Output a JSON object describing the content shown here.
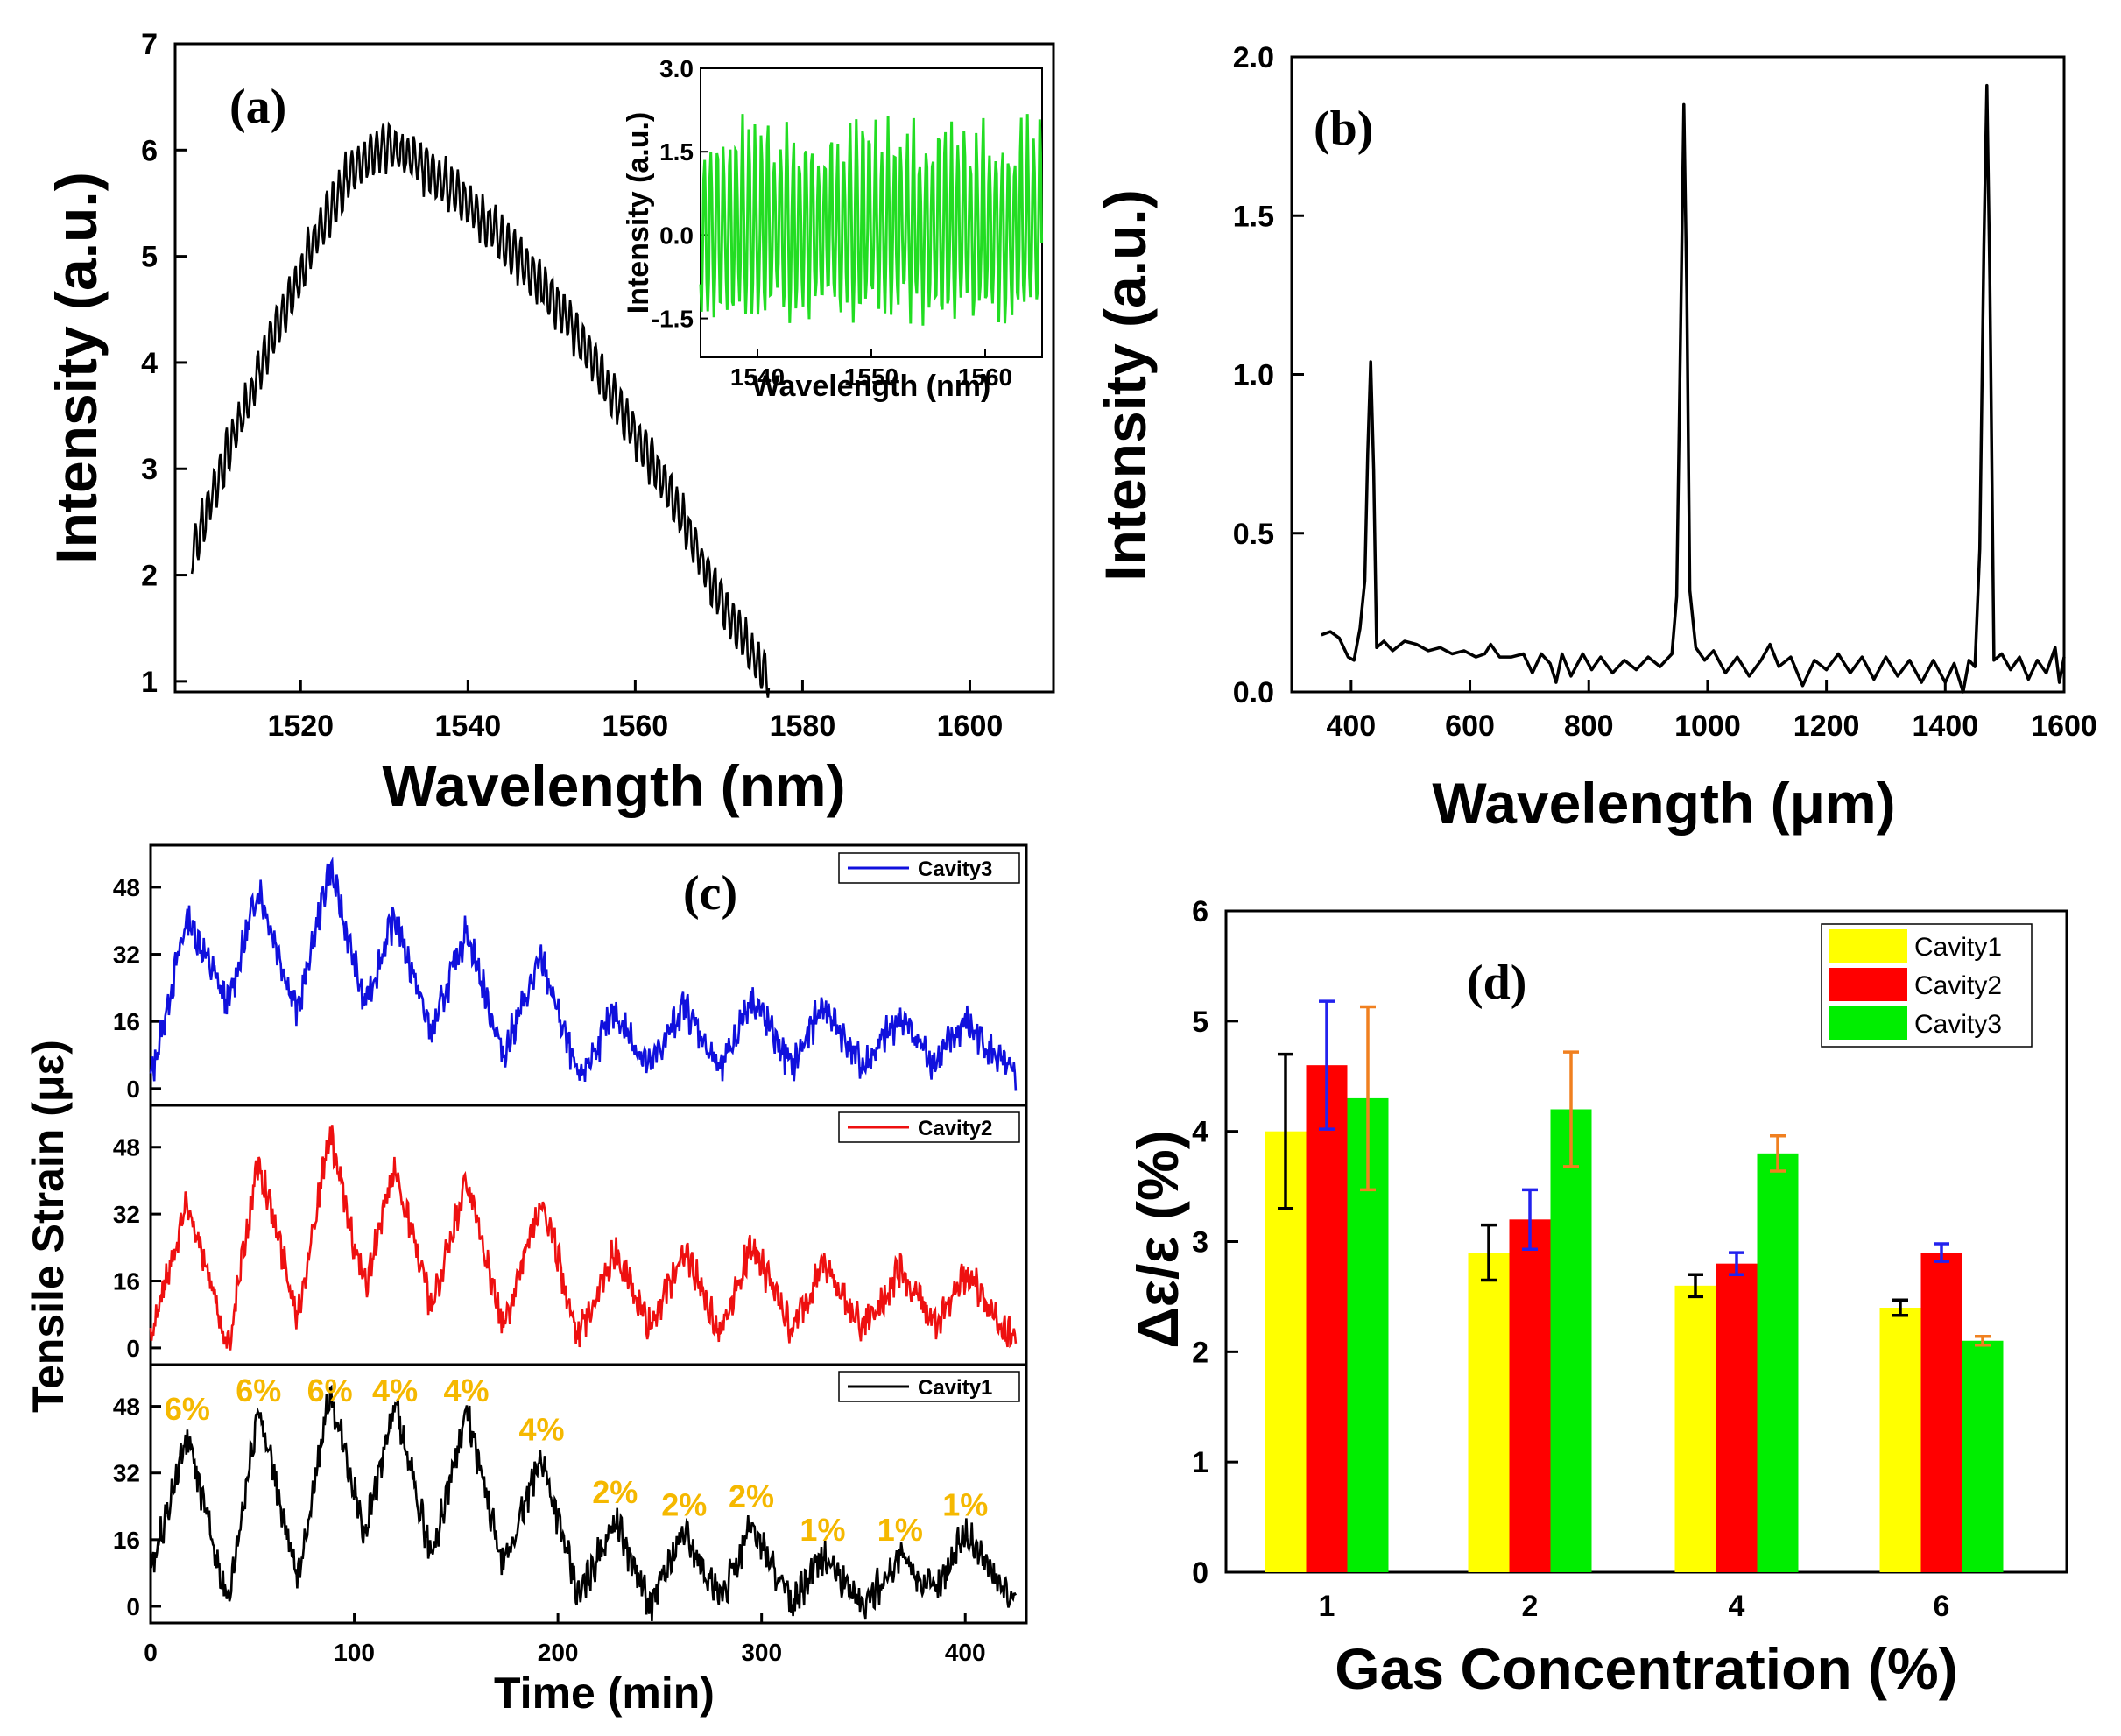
{
  "chart_data": [
    {
      "panel": "a",
      "type": "line",
      "label": "(a)",
      "xlabel": "Wavelength (nm)",
      "ylabel": "Intensity (a.u.)",
      "xlim": [
        1505,
        1610
      ],
      "ylim": [
        0.9,
        7
      ],
      "xticks": [
        "1520",
        "1540",
        "1560",
        "1580",
        "1600"
      ],
      "yticks": [
        "1",
        "2",
        "3",
        "4",
        "5",
        "6",
        "7"
      ],
      "series": [
        {
          "name": "spectrum",
          "color": "#000000",
          "envelope": [
            [
              1507,
              2.2
            ],
            [
              1512,
              3.3
            ],
            [
              1517,
              4.3
            ],
            [
              1522,
              5.2
            ],
            [
              1526,
              5.8
            ],
            [
              1530,
              6.05
            ],
            [
              1534,
              5.9
            ],
            [
              1540,
              5.5
            ],
            [
              1546,
              5.0
            ],
            [
              1552,
              4.4
            ],
            [
              1558,
              3.6
            ],
            [
              1564,
              2.8
            ],
            [
              1570,
              1.8
            ],
            [
              1576,
              1.0
            ]
          ],
          "ripple_amplitude": 0.25
        }
      ],
      "inset": {
        "type": "line",
        "xlabel": "Wavelength (nm)",
        "ylabel": "Intensity (a.u.)",
        "xlim": [
          1535,
          1565
        ],
        "ylim": [
          -2.2,
          3.0
        ],
        "xticks": [
          "1540",
          "1550",
          "1560"
        ],
        "yticks": [
          "-1.5",
          "0.0",
          "1.5",
          "3.0"
        ],
        "series": [
          {
            "name": "oscillation",
            "color": "#22dd22",
            "amplitude": [
              -1.7,
              2.2
            ]
          }
        ]
      }
    },
    {
      "panel": "b",
      "type": "line",
      "label": "(b)",
      "xlabel": "Wavelength (μm)",
      "ylabel": "Intensity (a.u.)",
      "xlim": [
        300,
        1600
      ],
      "ylim": [
        0,
        2.0
      ],
      "xticks": [
        "400",
        "600",
        "800",
        "1000",
        "1200",
        "1400",
        "1600"
      ],
      "yticks": [
        "0.0",
        "0.5",
        "1.0",
        "1.5",
        "2.0"
      ],
      "series": [
        {
          "name": "FFT",
          "color": "#000000",
          "points": [
            [
              350,
              0.18
            ],
            [
              365,
              0.19
            ],
            [
              380,
              0.17
            ],
            [
              395,
              0.11
            ],
            [
              405,
              0.1
            ],
            [
              415,
              0.2
            ],
            [
              423,
              0.35
            ],
            [
              428,
              0.75
            ],
            [
              433,
              1.04
            ],
            [
              438,
              0.7
            ],
            [
              443,
              0.14
            ],
            [
              455,
              0.16
            ],
            [
              470,
              0.13
            ],
            [
              490,
              0.16
            ],
            [
              510,
              0.15
            ],
            [
              530,
              0.13
            ],
            [
              550,
              0.14
            ],
            [
              570,
              0.12
            ],
            [
              590,
              0.13
            ],
            [
              610,
              0.11
            ],
            [
              625,
              0.12
            ],
            [
              635,
              0.15
            ],
            [
              650,
              0.11
            ],
            [
              670,
              0.11
            ],
            [
              690,
              0.12
            ],
            [
              705,
              0.06
            ],
            [
              720,
              0.12
            ],
            [
              735,
              0.09
            ],
            [
              745,
              0.03
            ],
            [
              755,
              0.12
            ],
            [
              770,
              0.05
            ],
            [
              790,
              0.12
            ],
            [
              805,
              0.07
            ],
            [
              820,
              0.11
            ],
            [
              840,
              0.06
            ],
            [
              860,
              0.1
            ],
            [
              880,
              0.07
            ],
            [
              900,
              0.11
            ],
            [
              920,
              0.08
            ],
            [
              940,
              0.12
            ],
            [
              948,
              0.3
            ],
            [
              955,
              1.2
            ],
            [
              960,
              1.85
            ],
            [
              965,
              1.25
            ],
            [
              970,
              0.32
            ],
            [
              980,
              0.14
            ],
            [
              995,
              0.1
            ],
            [
              1010,
              0.13
            ],
            [
              1030,
              0.06
            ],
            [
              1050,
              0.11
            ],
            [
              1070,
              0.05
            ],
            [
              1090,
              0.1
            ],
            [
              1105,
              0.15
            ],
            [
              1120,
              0.08
            ],
            [
              1140,
              0.11
            ],
            [
              1160,
              0.02
            ],
            [
              1180,
              0.1
            ],
            [
              1200,
              0.07
            ],
            [
              1220,
              0.12
            ],
            [
              1240,
              0.06
            ],
            [
              1260,
              0.11
            ],
            [
              1280,
              0.04
            ],
            [
              1300,
              0.11
            ],
            [
              1320,
              0.05
            ],
            [
              1340,
              0.1
            ],
            [
              1360,
              0.03
            ],
            [
              1380,
              0.1
            ],
            [
              1400,
              0.03
            ],
            [
              1415,
              0.09
            ],
            [
              1430,
              0.0
            ],
            [
              1440,
              0.1
            ],
            [
              1450,
              0.08
            ],
            [
              1458,
              0.45
            ],
            [
              1465,
              1.4
            ],
            [
              1470,
              1.91
            ],
            [
              1475,
              1.3
            ],
            [
              1482,
              0.1
            ],
            [
              1495,
              0.12
            ],
            [
              1510,
              0.07
            ],
            [
              1525,
              0.11
            ],
            [
              1540,
              0.04
            ],
            [
              1555,
              0.1
            ],
            [
              1570,
              0.06
            ],
            [
              1585,
              0.14
            ],
            [
              1592,
              0.03
            ],
            [
              1600,
              0.11
            ]
          ]
        }
      ]
    },
    {
      "panel": "c",
      "type": "line",
      "label": "(c)",
      "xlabel": "Time (min)",
      "ylabel": "Tensile Strain (με)",
      "xlim": [
        0,
        430
      ],
      "ylim": [
        -4,
        58
      ],
      "xticks": [
        "0",
        "100",
        "200",
        "300",
        "400"
      ],
      "yticks": [
        "0",
        "16",
        "32",
        "48"
      ],
      "peak_times": [
        18,
        53,
        88,
        120,
        155,
        192,
        228,
        262,
        295,
        330,
        368,
        400
      ],
      "trough_times": [
        0,
        38,
        72,
        105,
        138,
        173,
        210,
        245,
        280,
        315,
        350,
        385,
        425
      ],
      "subplots": [
        {
          "name": "Cavity3",
          "legend": "Cavity3",
          "color": "#1010dd",
          "peaks": [
            41,
            48,
            53,
            41,
            38,
            31,
            18,
            20,
            22,
            20,
            17,
            16
          ],
          "troughs": [
            2,
            20,
            18,
            20,
            13,
            8,
            2,
            5,
            4,
            5,
            5,
            6,
            2
          ]
        },
        {
          "name": "Cavity2",
          "legend": "Cavity2",
          "color": "#ee1010",
          "peaks": [
            35,
            45,
            51,
            43,
            40,
            36,
            23,
            23,
            25,
            20,
            18,
            18
          ],
          "troughs": [
            3,
            0,
            8,
            14,
            9,
            5,
            3,
            5,
            4,
            4,
            5,
            6,
            1
          ]
        },
        {
          "name": "Cavity1",
          "legend": "Cavity1",
          "color": "#000000",
          "peaks": [
            41,
            48,
            51,
            48,
            47,
            36,
            21,
            18,
            20,
            12,
            12,
            18
          ],
          "troughs": [
            8,
            0,
            6,
            18,
            12,
            9,
            2,
            0,
            1,
            0,
            0,
            3,
            0
          ]
        }
      ],
      "annotations": [
        "6%",
        "6%",
        "6%",
        "4%",
        "4%",
        "4%",
        "2%",
        "2%",
        "2%",
        "1%",
        "1%",
        "1%"
      ]
    },
    {
      "panel": "d",
      "type": "bar",
      "label": "(d)",
      "xlabel": "Gas Concentration (%)",
      "ylabel": "Δε/ε (%)",
      "categories": [
        "1",
        "2",
        "4",
        "6"
      ],
      "ylim": [
        0,
        6
      ],
      "yticks": [
        "0",
        "1",
        "2",
        "3",
        "4",
        "5",
        "6"
      ],
      "series": [
        {
          "name": "Cavity1",
          "color": "#ffff00",
          "error_color": "#000000",
          "values": [
            4.0,
            2.9,
            2.6,
            2.4
          ],
          "errors": [
            0.7,
            0.25,
            0.1,
            0.07
          ]
        },
        {
          "name": "Cavity2",
          "color": "#ff0000",
          "error_color": "#2222ee",
          "values": [
            4.6,
            3.2,
            2.8,
            2.9
          ],
          "errors": [
            0.58,
            0.27,
            0.1,
            0.08
          ]
        },
        {
          "name": "Cavity3",
          "color": "#00ee00",
          "error_color": "#f08020",
          "values": [
            4.3,
            4.2,
            3.8,
            2.1
          ],
          "errors": [
            0.83,
            0.52,
            0.16,
            0.04
          ]
        }
      ],
      "legend_position": "top-right"
    }
  ]
}
